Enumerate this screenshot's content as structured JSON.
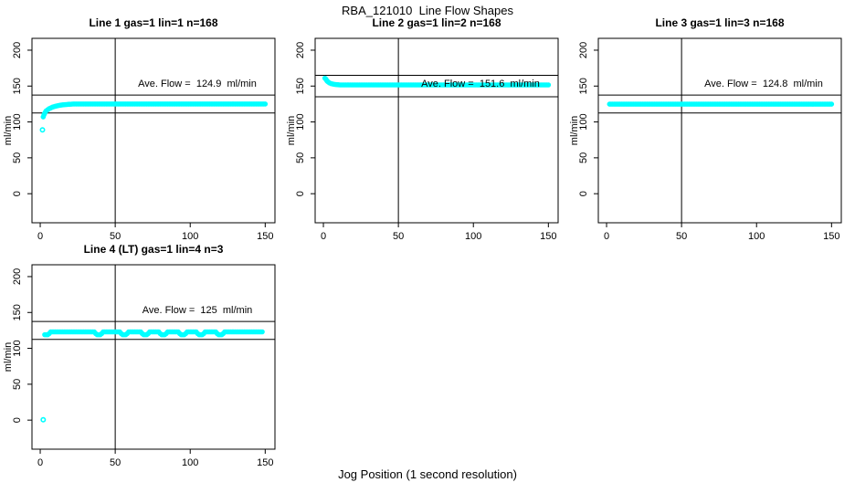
{
  "title": "RBA_121010  Line Flow Shapes",
  "xlabel": "Jog Position (1 second resolution)",
  "colors": {
    "points": "#00ffff",
    "axis": "#000000",
    "background": "#ffffff",
    "text": "#000000"
  },
  "chart_data": [
    {
      "type": "scatter",
      "title": "Line 1 gas=1 lin=1 n=168",
      "annotation": "Ave. Flow =  124.9  ml/min",
      "avg_flow_ml_min": 124.9,
      "n": 168,
      "ylabel": "ml/min",
      "xticks": [
        0,
        50,
        100,
        150
      ],
      "yticks": [
        0,
        50,
        100,
        150,
        200
      ],
      "xlim": [
        -5.5,
        156.5
      ],
      "ylim": [
        -40.5,
        216.5
      ],
      "vline_x": 50,
      "ref_lines": [
        137.5,
        112.5
      ],
      "series": {
        "name": "flow",
        "outliers": [
          [
            1.5,
            89
          ]
        ],
        "rise": [
          [
            2,
            107
          ],
          [
            2.5,
            110
          ],
          [
            3,
            112
          ],
          [
            3.5,
            114
          ],
          [
            4,
            115.5
          ],
          [
            5,
            117
          ],
          [
            6,
            118.5
          ],
          [
            7,
            119.5
          ],
          [
            8,
            120.5
          ],
          [
            9,
            121.2
          ],
          [
            10,
            121.8
          ],
          [
            11,
            122.3
          ],
          [
            12,
            122.8
          ],
          [
            13,
            123.2
          ],
          [
            14,
            123.5
          ],
          [
            15,
            123.8
          ],
          [
            16,
            124
          ],
          [
            17,
            124.2
          ],
          [
            18,
            124.4
          ],
          [
            19,
            124.6
          ],
          [
            20,
            124.7
          ],
          [
            21,
            124.8
          ]
        ],
        "flat": {
          "from": 22,
          "to": 150,
          "y": 125,
          "step": 1
        },
        "dips": [],
        "dip_depth": 0
      }
    },
    {
      "type": "scatter",
      "title": "Line 2 gas=1 lin=2 n=168",
      "annotation": "Ave. Flow =  151.6  ml/min",
      "avg_flow_ml_min": 151.6,
      "n": 168,
      "ylabel": "ml/min",
      "xticks": [
        0,
        50,
        100,
        150
      ],
      "yticks": [
        0,
        50,
        100,
        150,
        200
      ],
      "xlim": [
        -5.5,
        156.5
      ],
      "ylim": [
        -40.5,
        216.5
      ],
      "vline_x": 50,
      "ref_lines": [
        165,
        135
      ],
      "series": {
        "name": "flow",
        "outliers": [],
        "rise": [
          [
            1,
            161
          ],
          [
            1.5,
            160
          ],
          [
            2,
            158.5
          ],
          [
            2.5,
            157
          ],
          [
            3,
            156
          ],
          [
            4,
            154.5
          ],
          [
            5,
            153.5
          ],
          [
            6,
            153
          ],
          [
            7,
            152.5
          ],
          [
            8,
            152.2
          ],
          [
            9,
            152
          ],
          [
            10,
            151.8
          ]
        ],
        "flat": {
          "from": 11,
          "to": 150,
          "y": 151.6,
          "step": 1
        },
        "dips": [],
        "dip_depth": 0
      }
    },
    {
      "type": "scatter",
      "title": "Line 3 gas=1 lin=3 n=168",
      "annotation": "Ave. Flow =  124.8  ml/min",
      "avg_flow_ml_min": 124.8,
      "n": 168,
      "ylabel": "ml/min",
      "xticks": [
        0,
        50,
        100,
        150
      ],
      "yticks": [
        0,
        50,
        100,
        150,
        200
      ],
      "xlim": [
        -5.5,
        156.5
      ],
      "ylim": [
        -40.5,
        216.5
      ],
      "vline_x": 50,
      "ref_lines": [
        137.5,
        112.5
      ],
      "series": {
        "name": "flow",
        "outliers": [],
        "rise": [],
        "flat": {
          "from": 2,
          "to": 150,
          "y": 124.8,
          "step": 1
        },
        "dips": [],
        "dip_depth": 0
      }
    },
    {
      "type": "scatter",
      "title": "Line 4 (LT) gas=1 lin=4 n=3",
      "annotation": "Ave. Flow =  125  ml/min",
      "avg_flow_ml_min": 125,
      "n": 3,
      "ylabel": "ml/min",
      "xticks": [
        0,
        50,
        100,
        150
      ],
      "yticks": [
        0,
        50,
        100,
        150,
        200
      ],
      "xlim": [
        -5.5,
        156.5
      ],
      "ylim": [
        -40.5,
        216.5
      ],
      "vline_x": 50,
      "ref_lines": [
        137.5,
        112.5
      ],
      "series": {
        "name": "flow",
        "outliers": [
          [
            2,
            0.5
          ]
        ],
        "rise": [],
        "flat": {
          "from": 3,
          "to": 148,
          "y": 123,
          "step": 1
        },
        "dips": [
          4,
          39,
          56,
          70,
          82,
          95,
          107,
          120
        ],
        "dip_depth": 4
      }
    }
  ]
}
